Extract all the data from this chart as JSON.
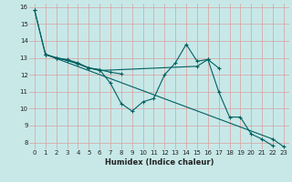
{
  "xlabel": "Humidex (Indice chaleur)",
  "bg_color": "#c8e8e8",
  "grid_color": "#d8a0a0",
  "line_color": "#006060",
  "xlim": [
    -0.5,
    23.5
  ],
  "ylim": [
    7.6,
    16.2
  ],
  "xticks": [
    0,
    1,
    2,
    3,
    4,
    5,
    6,
    7,
    8,
    9,
    10,
    11,
    12,
    13,
    14,
    15,
    16,
    17,
    18,
    19,
    20,
    21,
    22,
    23
  ],
  "yticks": [
    8,
    9,
    10,
    11,
    12,
    13,
    14,
    15,
    16
  ],
  "series": [
    {
      "x": [
        0,
        1,
        2,
        3,
        4,
        5,
        6,
        7,
        8,
        9,
        10,
        11,
        12,
        13,
        14,
        15,
        16,
        17
      ],
      "y": [
        15.8,
        13.2,
        13.0,
        12.9,
        12.7,
        12.4,
        12.3,
        11.5,
        10.3,
        9.85,
        10.4,
        10.6,
        12.0,
        12.7,
        13.8,
        12.8,
        12.9,
        12.4
      ]
    },
    {
      "x": [
        1,
        2,
        3,
        4,
        5,
        6,
        15,
        16,
        17,
        18,
        19,
        20,
        21,
        22
      ],
      "y": [
        13.2,
        13.0,
        12.85,
        12.65,
        12.4,
        12.25,
        12.5,
        12.9,
        11.0,
        9.5,
        9.5,
        8.5,
        8.2,
        7.8
      ]
    },
    {
      "x": [
        0,
        1,
        22,
        23
      ],
      "y": [
        15.8,
        13.2,
        8.2,
        7.75
      ]
    },
    {
      "x": [
        1,
        2,
        3,
        4,
        5,
        6,
        7,
        8
      ],
      "y": [
        13.2,
        13.0,
        12.85,
        12.65,
        12.4,
        12.3,
        12.15,
        12.05
      ]
    }
  ]
}
